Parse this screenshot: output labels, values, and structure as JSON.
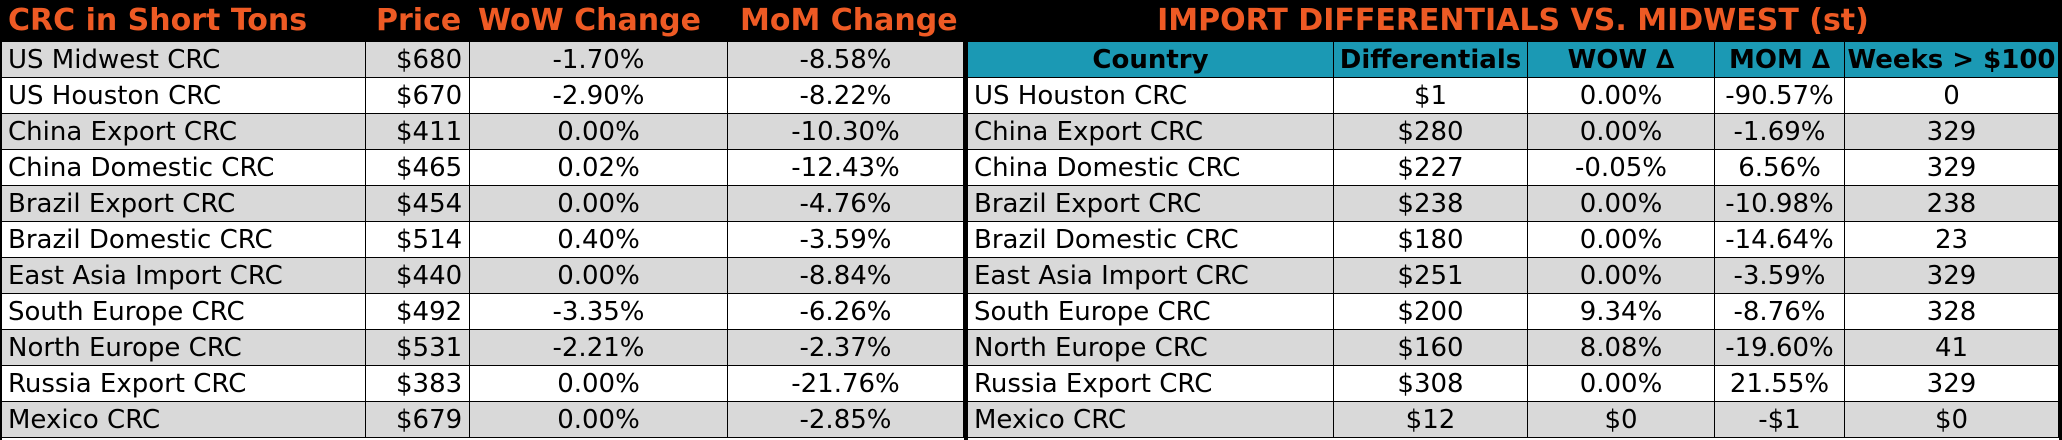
{
  "header": {
    "left_title": "CRC in Short Tons",
    "price": "Price",
    "wow": "WoW Change",
    "mom": "MoM Change",
    "right_title": "IMPORT DIFFERENTIALS VS. MIDWEST (st)"
  },
  "right_columns": {
    "country": "Country",
    "differentials": "Differentials",
    "wow": "WOW ∆",
    "mom": "MOM ∆",
    "weeks": "Weeks > $100"
  },
  "left_rows": [
    {
      "name": "US Midwest CRC",
      "price": "$680",
      "wow": "-1.70%",
      "mom": "-8.58%"
    },
    {
      "name": "US Houston CRC",
      "price": "$670",
      "wow": "-2.90%",
      "mom": "-8.22%"
    },
    {
      "name": "China Export CRC",
      "price": "$411",
      "wow": "0.00%",
      "mom": "-10.30%"
    },
    {
      "name": "China Domestic CRC",
      "price": "$465",
      "wow": "0.02%",
      "mom": "-12.43%"
    },
    {
      "name": "Brazil Export CRC",
      "price": "$454",
      "wow": "0.00%",
      "mom": "-4.76%"
    },
    {
      "name": "Brazil Domestic CRC",
      "price": "$514",
      "wow": "0.40%",
      "mom": "-3.59%"
    },
    {
      "name": "East Asia Import CRC",
      "price": "$440",
      "wow": "0.00%",
      "mom": "-8.84%"
    },
    {
      "name": "South Europe CRC",
      "price": "$492",
      "wow": "-3.35%",
      "mom": "-6.26%"
    },
    {
      "name": "North Europe CRC",
      "price": "$531",
      "wow": "-2.21%",
      "mom": "-2.37%"
    },
    {
      "name": "Russia Export CRC",
      "price": "$383",
      "wow": "0.00%",
      "mom": "-21.76%"
    },
    {
      "name": "Mexico CRC",
      "price": "$679",
      "wow": "0.00%",
      "mom": "-2.85%"
    }
  ],
  "right_rows": [
    {
      "country": "US Houston CRC",
      "diff": "$1",
      "wow": "0.00%",
      "mom": "-90.57%",
      "weeks": "0"
    },
    {
      "country": "China Export CRC",
      "diff": "$280",
      "wow": "0.00%",
      "mom": "-1.69%",
      "weeks": "329"
    },
    {
      "country": "China Domestic CRC",
      "diff": "$227",
      "wow": "-0.05%",
      "mom": "6.56%",
      "weeks": "329"
    },
    {
      "country": "Brazil Export CRC",
      "diff": "$238",
      "wow": "0.00%",
      "mom": "-10.98%",
      "weeks": "238"
    },
    {
      "country": "Brazil Domestic CRC",
      "diff": "$180",
      "wow": "0.00%",
      "mom": "-14.64%",
      "weeks": "23"
    },
    {
      "country": "East Asia Import CRC",
      "diff": "$251",
      "wow": "0.00%",
      "mom": "-3.59%",
      "weeks": "329"
    },
    {
      "country": "South Europe CRC",
      "diff": "$200",
      "wow": "9.34%",
      "mom": "-8.76%",
      "weeks": "328"
    },
    {
      "country": "North Europe CRC",
      "diff": "$160",
      "wow": "8.08%",
      "mom": "-19.60%",
      "weeks": "41"
    },
    {
      "country": "Russia Export CRC",
      "diff": "$308",
      "wow": "0.00%",
      "mom": "21.55%",
      "weeks": "329"
    },
    {
      "country": "Mexico CRC",
      "diff": "$12",
      "wow": "$0",
      "mom": "-$1",
      "weeks": "$0"
    }
  ],
  "colors": {
    "title_bg": "#000000",
    "title_text": "#ee5a24",
    "header_teal": "#1b99b4",
    "row_gray": "#d9d9d9",
    "row_white": "#ffffff"
  }
}
